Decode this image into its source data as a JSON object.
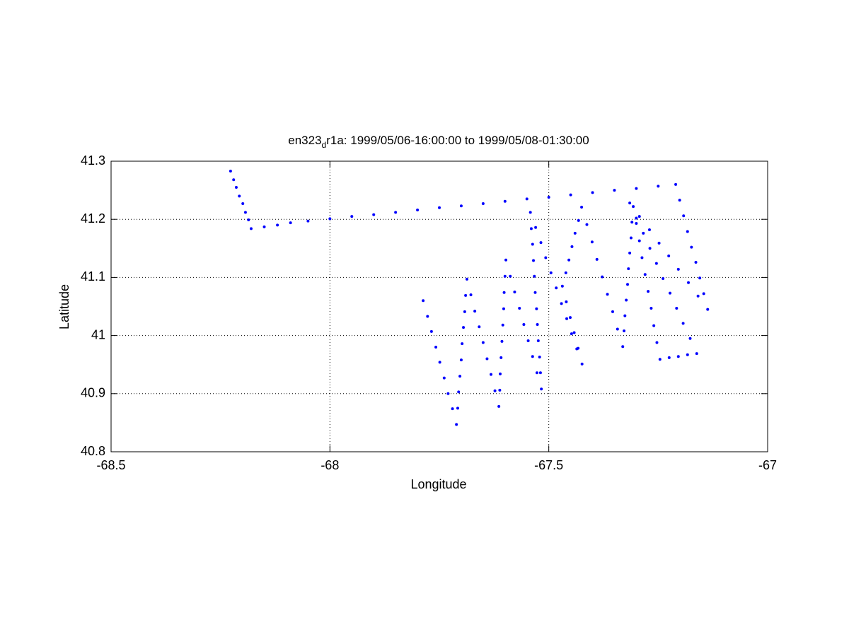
{
  "chart_data": {
    "type": "scatter",
    "title_start": "en323",
    "title_subscript": "d",
    "title_end": "r1a: 1999/05/06-16:00:00 to 1999/05/08-01:30:00",
    "xlabel": "Longitude",
    "ylabel": "Latitude",
    "xlim": [
      -68.5,
      -67
    ],
    "xticks": [
      -68.5,
      -68,
      -67.5,
      -67
    ],
    "ylim": [
      40.8,
      41.3
    ],
    "yticks": [
      40.8,
      40.9,
      41,
      41.1,
      41.2,
      41.3
    ],
    "grid": true,
    "x": [
      -68.227,
      -68.22,
      -68.214,
      -68.207,
      -68.199,
      -68.193,
      -68.186,
      -68.18,
      -68.15,
      -68.12,
      -68.09,
      -68.05,
      -68.0,
      -67.95,
      -67.9,
      -67.85,
      -67.8,
      -67.75,
      -67.7,
      -67.65,
      -67.6,
      -67.55,
      -67.5,
      -67.45,
      -67.4,
      -67.35,
      -67.3,
      -67.25,
      -67.21,
      -67.201,
      -67.192,
      -67.183,
      -67.174,
      -67.164,
      -67.155,
      -67.146,
      -67.137,
      -67.159,
      -67.181,
      -67.204,
      -67.226,
      -67.248,
      -67.27,
      -67.293,
      -67.315,
      -67.3,
      -67.284,
      -67.269,
      -67.254,
      -67.239,
      -67.223,
      -67.208,
      -67.193,
      -67.177,
      -67.162,
      -67.183,
      -67.204,
      -67.225,
      -67.246,
      -67.253,
      -67.26,
      -67.266,
      -67.273,
      -67.28,
      -67.287,
      -67.293,
      -67.3,
      -67.307,
      -67.31,
      -67.312,
      -67.315,
      -67.318,
      -67.32,
      -67.323,
      -67.326,
      -67.328,
      -67.331,
      -67.343,
      -67.354,
      -67.366,
      -67.378,
      -67.39,
      -67.401,
      -67.413,
      -67.425,
      -67.432,
      -67.44,
      -67.447,
      -67.454,
      -67.461,
      -67.469,
      -67.46,
      -67.451,
      -67.442,
      -67.433,
      -67.424,
      -67.436,
      -67.448,
      -67.459,
      -67.471,
      -67.483,
      -67.495,
      -67.507,
      -67.518,
      -67.53,
      -67.542,
      -67.54,
      -67.537,
      -67.535,
      -67.533,
      -67.531,
      -67.528,
      -67.526,
      -67.524,
      -67.521,
      -67.519,
      -67.517,
      -67.527,
      -67.537,
      -67.547,
      -67.557,
      -67.567,
      -67.578,
      -67.588,
      -67.598,
      -67.6,
      -67.602,
      -67.603,
      -67.605,
      -67.607,
      -67.609,
      -67.611,
      -67.612,
      -67.614,
      -67.623,
      -67.632,
      -67.641,
      -67.65,
      -67.659,
      -67.669,
      -67.678,
      -67.687,
      -67.69,
      -67.692,
      -67.695,
      -67.698,
      -67.7,
      -67.703,
      -67.706,
      -67.708,
      -67.711,
      -67.72,
      -67.73,
      -67.739,
      -67.749,
      -67.758,
      -67.768,
      -67.777,
      -67.787
    ],
    "series": [
      {
        "color": "#0000ff",
        "values": [
          41.283,
          41.268,
          41.255,
          41.24,
          41.227,
          41.212,
          41.199,
          41.184,
          41.187,
          41.19,
          41.194,
          41.197,
          41.201,
          41.205,
          41.208,
          41.212,
          41.216,
          41.22,
          41.223,
          41.227,
          41.231,
          41.235,
          41.238,
          41.242,
          41.246,
          41.25,
          41.253,
          41.257,
          41.26,
          41.233,
          41.206,
          41.179,
          41.152,
          41.126,
          41.099,
          41.072,
          41.045,
          41.068,
          41.091,
          41.114,
          41.137,
          41.159,
          41.182,
          41.205,
          41.228,
          41.202,
          41.176,
          41.15,
          41.124,
          41.098,
          41.073,
          41.047,
          41.021,
          40.995,
          40.969,
          40.967,
          40.964,
          40.962,
          40.959,
          40.988,
          41.017,
          41.047,
          41.076,
          41.105,
          41.134,
          41.163,
          41.193,
          41.222,
          41.195,
          41.168,
          41.142,
          41.115,
          41.088,
          41.061,
          41.034,
          41.008,
          40.981,
          41.011,
          41.041,
          41.071,
          41.101,
          41.131,
          41.161,
          41.191,
          41.221,
          41.198,
          41.176,
          41.153,
          41.13,
          41.108,
          41.085,
          41.058,
          41.031,
          41.005,
          40.978,
          40.951,
          40.977,
          41.003,
          41.029,
          41.055,
          41.082,
          41.108,
          41.134,
          41.16,
          41.186,
          41.212,
          41.184,
          41.157,
          41.129,
          41.102,
          41.074,
          41.046,
          41.019,
          40.991,
          40.963,
          40.936,
          40.908,
          40.936,
          40.964,
          40.991,
          41.019,
          41.047,
          41.075,
          41.102,
          41.13,
          41.102,
          41.074,
          41.046,
          41.018,
          40.99,
          40.962,
          40.934,
          40.906,
          40.878,
          40.905,
          40.933,
          40.96,
          40.988,
          41.015,
          41.042,
          41.07,
          41.097,
          41.069,
          41.041,
          41.014,
          40.986,
          40.958,
          40.93,
          40.903,
          40.875,
          40.847,
          40.874,
          40.9,
          40.927,
          40.954,
          40.98,
          41.007,
          41.033,
          41.06
        ]
      }
    ]
  }
}
